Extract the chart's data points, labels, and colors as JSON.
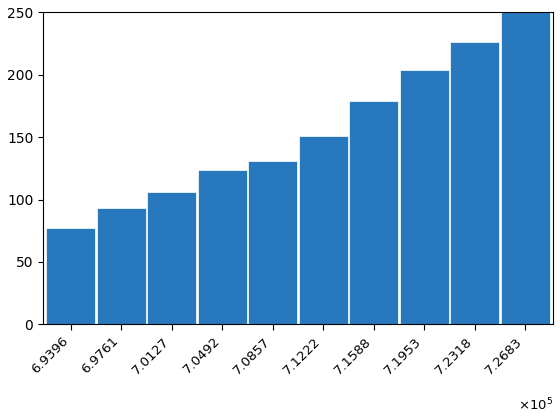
{
  "x_labels": [
    "6.9396",
    "6.9761",
    "7.0127",
    "7.0492",
    "7.0857",
    "7.1222",
    "7.1588",
    "7.1953",
    "7.2318",
    "7.2683"
  ],
  "bar_heights": [
    77,
    93,
    106,
    124,
    131,
    151,
    179,
    204,
    226,
    250
  ],
  "bar_color": "#2878BE",
  "bar_edge_color": "white",
  "ylim": [
    0,
    250
  ],
  "yticks": [
    0,
    50,
    100,
    150,
    200,
    250
  ],
  "exponent_label": "$\\times10^5$",
  "figsize": [
    5.6,
    4.2
  ],
  "dpi": 100,
  "label_fontsize": 9.5,
  "tick_fontsize": 10
}
